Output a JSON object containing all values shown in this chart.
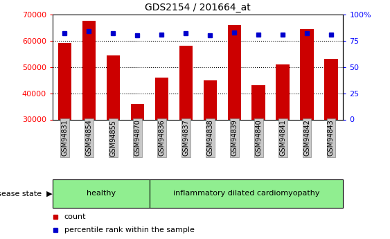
{
  "title": "GDS2154 / 201664_at",
  "samples": [
    "GSM94831",
    "GSM94854",
    "GSM94855",
    "GSM94870",
    "GSM94836",
    "GSM94837",
    "GSM94838",
    "GSM94839",
    "GSM94840",
    "GSM94841",
    "GSM94842",
    "GSM94843"
  ],
  "counts": [
    59000,
    67500,
    54500,
    36000,
    46000,
    58000,
    45000,
    66000,
    43000,
    51000,
    64500,
    53000
  ],
  "percentile_ranks": [
    82,
    84,
    82,
    80,
    81,
    82,
    80,
    83,
    81,
    81,
    82,
    81
  ],
  "ylim_left": [
    30000,
    70000
  ],
  "ylim_right": [
    0,
    100
  ],
  "yticks_left": [
    30000,
    40000,
    50000,
    60000,
    70000
  ],
  "yticks_right": [
    0,
    25,
    50,
    75,
    100
  ],
  "healthy_count": 4,
  "disease_count": 8,
  "bar_color": "#cc0000",
  "percentile_color": "#0000cc",
  "healthy_bg": "#90EE90",
  "disease_bg": "#90EE90",
  "tick_label_bg": "#c8c8c8",
  "label_fontsize": 7,
  "title_fontsize": 10,
  "disease_label": "disease state",
  "healthy_label": "healthy",
  "disease_group_label": "inflammatory dilated cardiomyopathy",
  "legend_count": "count",
  "legend_pct": "percentile rank within the sample"
}
